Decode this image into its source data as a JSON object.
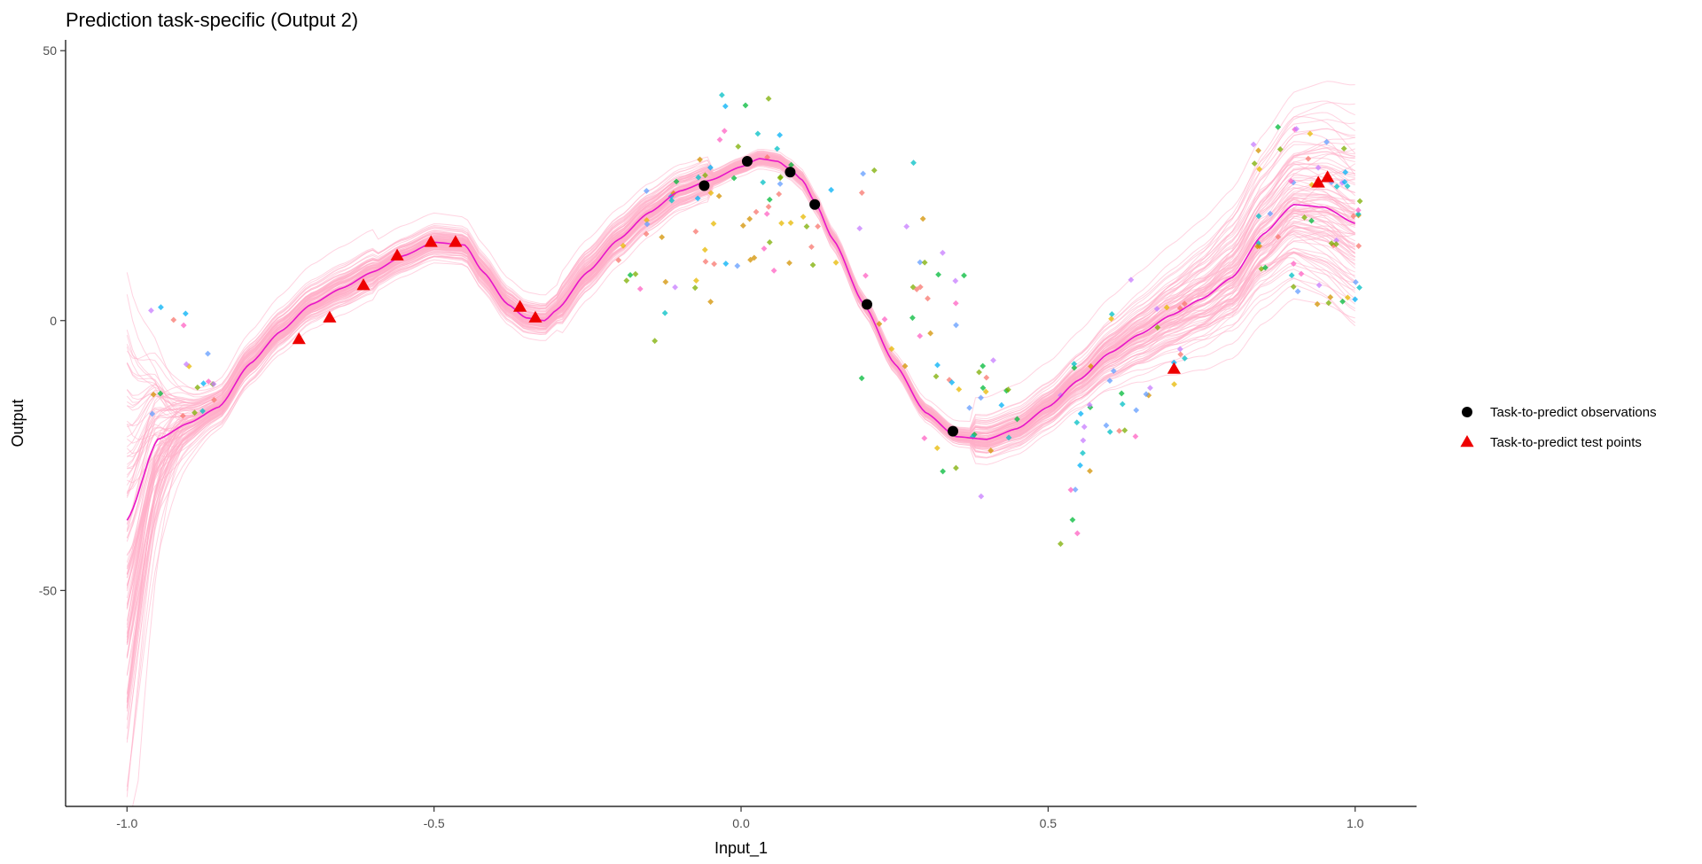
{
  "chart_data": {
    "type": "line",
    "title": "Prediction task-specific (Output 2)",
    "xlabel": "Input_1",
    "ylabel": "Output",
    "xlim": [
      -1.1,
      1.1
    ],
    "ylim": [
      -90,
      52
    ],
    "x_ticks": [
      -1.0,
      -0.5,
      0.0,
      0.5,
      1.0
    ],
    "x_tick_labels": [
      "-1.0",
      "-0.5",
      "0.0",
      "0.5",
      "1.0"
    ],
    "y_ticks": [
      -50,
      0,
      50
    ],
    "y_tick_labels": [
      "-50",
      "0",
      "50"
    ],
    "grid": false,
    "legend_position": "right",
    "colors": {
      "mean": "#e815c8",
      "samples": "#ffaec9",
      "observations": "#000000",
      "test_points": "#ee0000",
      "other_tasks": [
        "#f8766d",
        "#7cae00",
        "#00bfc4",
        "#c77cff",
        "#e7b800",
        "#00b0f6",
        "#ff61c3",
        "#00ba38",
        "#619cff",
        "#d39200"
      ]
    },
    "mean_curve": {
      "x": [
        -1.0,
        -0.95,
        -0.9,
        -0.85,
        -0.8,
        -0.75,
        -0.7,
        -0.65,
        -0.6,
        -0.55,
        -0.5,
        -0.45,
        -0.42,
        -0.38,
        -0.35,
        -0.32,
        -0.3,
        -0.25,
        -0.2,
        -0.15,
        -0.1,
        -0.05,
        0.0,
        0.03,
        0.06,
        0.08,
        0.1,
        0.12,
        0.15,
        0.2,
        0.25,
        0.3,
        0.35,
        0.4,
        0.45,
        0.5,
        0.55,
        0.6,
        0.65,
        0.7,
        0.75,
        0.8,
        0.85,
        0.9,
        0.95,
        1.0
      ],
      "y": [
        -37,
        -22,
        -19,
        -16,
        -8,
        -2,
        3,
        6,
        9,
        12,
        14.5,
        14,
        9,
        3,
        0.5,
        0,
        2,
        9,
        15,
        20,
        24,
        26,
        28.5,
        30,
        29.5,
        28,
        26,
        22,
        15,
        3,
        -8,
        -17,
        -21.5,
        -22,
        -20,
        -16,
        -11,
        -6,
        -2.5,
        1,
        4,
        8,
        16,
        21.5,
        21,
        18
      ]
    },
    "sample_curves": {
      "count": 110
    },
    "series": [
      {
        "name": "Task-to-predict observations",
        "marker": "circle",
        "x": [
          -0.06,
          0.01,
          0.08,
          0.12,
          0.205,
          0.345
        ],
        "y": [
          25,
          29.5,
          27.5,
          21.5,
          3,
          -20.5
        ]
      },
      {
        "name": "Task-to-predict test points",
        "marker": "triangle",
        "x": [
          -0.72,
          -0.67,
          -0.615,
          -0.56,
          -0.505,
          -0.465,
          -0.36,
          -0.335,
          0.705,
          0.94,
          0.955
        ],
        "y": [
          -3.5,
          0.5,
          6.5,
          12,
          14.5,
          14.5,
          2.5,
          0.5,
          -9,
          25.5,
          26.5
        ]
      }
    ],
    "other_tasks_scatter": {
      "groups": [
        {
          "x_center": -0.91,
          "x_spread": 0.06,
          "y_min": -24,
          "y_max": 4,
          "n": 20
        },
        {
          "x_center": -0.12,
          "x_spread": 0.08,
          "y_min": -6,
          "y_max": 27,
          "n": 26
        },
        {
          "x_center": 0.0,
          "x_spread": 0.07,
          "y_min": 9,
          "y_max": 43,
          "n": 36
        },
        {
          "x_center": 0.11,
          "x_spread": 0.05,
          "y_min": 10,
          "y_max": 31,
          "n": 14
        },
        {
          "x_center": 0.24,
          "x_spread": 0.06,
          "y_min": -12,
          "y_max": 30,
          "n": 16
        },
        {
          "x_center": 0.33,
          "x_spread": 0.05,
          "y_min": -28,
          "y_max": 13,
          "n": 22
        },
        {
          "x_center": 0.41,
          "x_spread": 0.04,
          "y_min": -33,
          "y_max": -7,
          "n": 16
        },
        {
          "x_center": 0.55,
          "x_spread": 0.03,
          "y_min": -42,
          "y_max": -5,
          "n": 18
        },
        {
          "x_center": 0.63,
          "x_spread": 0.04,
          "y_min": -24,
          "y_max": 9,
          "n": 16
        },
        {
          "x_center": 0.7,
          "x_spread": 0.03,
          "y_min": -12,
          "y_max": 4,
          "n": 10
        },
        {
          "x_center": 0.88,
          "x_spread": 0.05,
          "y_min": 5,
          "y_max": 37,
          "n": 28
        },
        {
          "x_center": 0.97,
          "x_spread": 0.04,
          "y_min": 3,
          "y_max": 34,
          "n": 28
        }
      ]
    }
  }
}
